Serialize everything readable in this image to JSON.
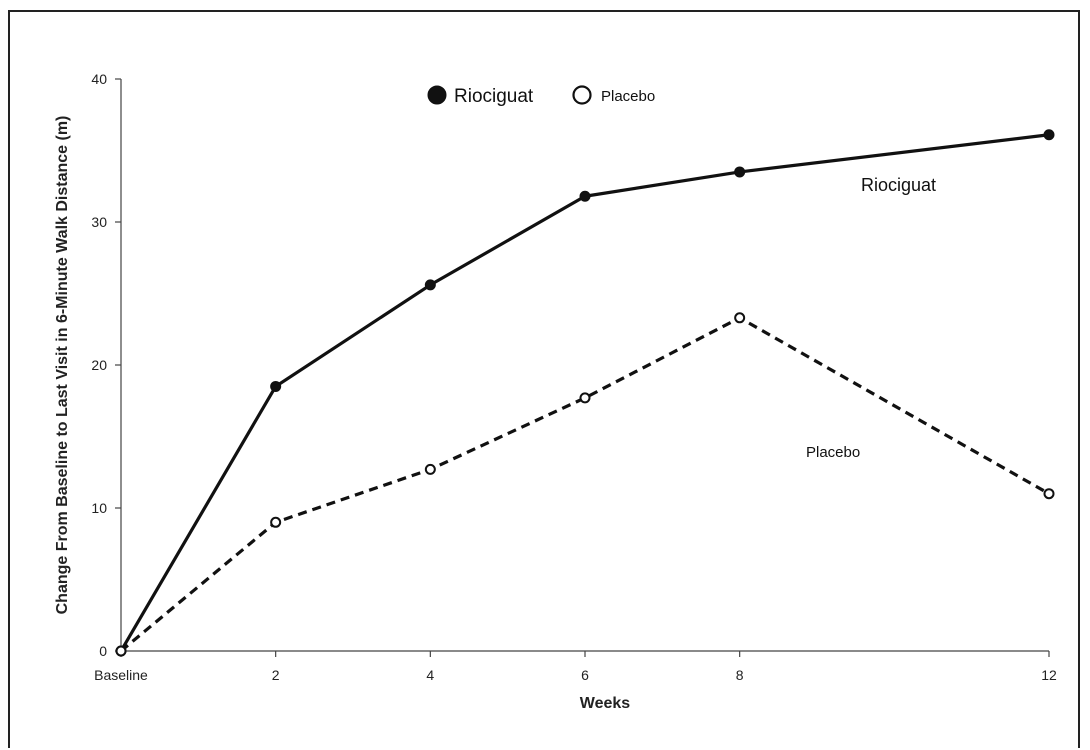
{
  "chart_data": {
    "type": "line",
    "title": "",
    "xlabel": "Weeks",
    "ylabel": "Change From Baseline to Last Visit in 6-Minute Walk Distance (m)",
    "categories": [
      "Baseline",
      "2",
      "4",
      "6",
      "8",
      "12"
    ],
    "x": [
      0,
      2,
      4,
      6,
      8,
      12
    ],
    "ylim": [
      0,
      40
    ],
    "yticks": [
      "0",
      "10",
      "20",
      "30",
      "40"
    ],
    "grid": false,
    "legend_placement": "top-center",
    "legend": [
      "Riociguat",
      "Placebo"
    ],
    "series": [
      {
        "name": "Riociguat",
        "values": [
          0,
          18.5,
          25.6,
          31.8,
          33.5,
          36.1
        ],
        "marker": "filled-circle",
        "line_style": "solid",
        "color": "#111111"
      },
      {
        "name": "Placebo",
        "values": [
          0,
          9.0,
          12.7,
          17.7,
          23.3,
          11.0
        ],
        "marker": "open-circle",
        "line_style": "dashed",
        "color": "#111111"
      }
    ],
    "annotations": [
      "Riociguat",
      "Placebo"
    ]
  }
}
